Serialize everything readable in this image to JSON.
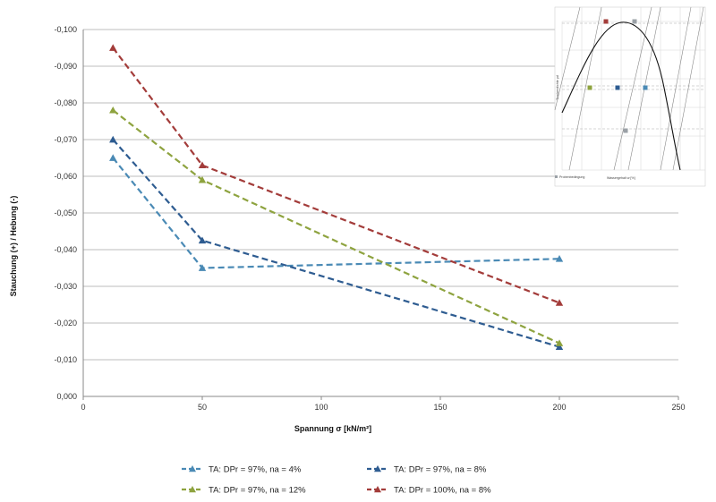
{
  "chart_data": {
    "type": "line",
    "xlabel": "Spannung σ [kN/m²]",
    "ylabel": "Stauchung (+) / Hebung (-)",
    "xlim": [
      0,
      250
    ],
    "ylim": [
      0,
      -0.1
    ],
    "x_ticks": [
      "0",
      "50",
      "100",
      "150",
      "200",
      "250"
    ],
    "y_ticks": [
      "0,000",
      "-0,010",
      "-0,020",
      "-0,030",
      "-0,040",
      "-0,050",
      "-0,060",
      "-0,070",
      "-0,080",
      "-0,090",
      "-0,100"
    ],
    "x": [
      12.5,
      50,
      200
    ],
    "grid": "horizontal",
    "legend_position": "bottom",
    "series": [
      {
        "name": "TA: DPr = 97%, na = 4%",
        "values": [
          -0.065,
          -0.035,
          -0.0375
        ],
        "color": "#4a8ab5"
      },
      {
        "name": "TA: DPr = 97%, na = 8%",
        "values": [
          -0.07,
          -0.0425,
          -0.0135
        ],
        "color": "#2e5c91"
      },
      {
        "name": "TA: DPr = 97%, na = 12%",
        "values": [
          -0.078,
          -0.059,
          -0.0145
        ],
        "color": "#8ea33f"
      },
      {
        "name": "TA: DPr = 100%, na = 8%",
        "values": [
          -0.095,
          -0.063,
          -0.0255
        ],
        "color": "#a33c3a"
      }
    ],
    "inset": {
      "xlabel": "Wassergehalt w [%]",
      "ylabel": "Trockendichte ρd",
      "legend": "Probenbedingung",
      "points": [
        {
          "color": "#a33c3a",
          "label": "red"
        },
        {
          "color": "#9aa0a6",
          "label": "gray"
        },
        {
          "color": "#8ea33f",
          "label": "green"
        },
        {
          "color": "#2e5c91",
          "label": "blue"
        },
        {
          "color": "#4a8ab5",
          "label": "teal"
        },
        {
          "color": "#9aa0a6",
          "label": "gray-low"
        }
      ]
    }
  }
}
